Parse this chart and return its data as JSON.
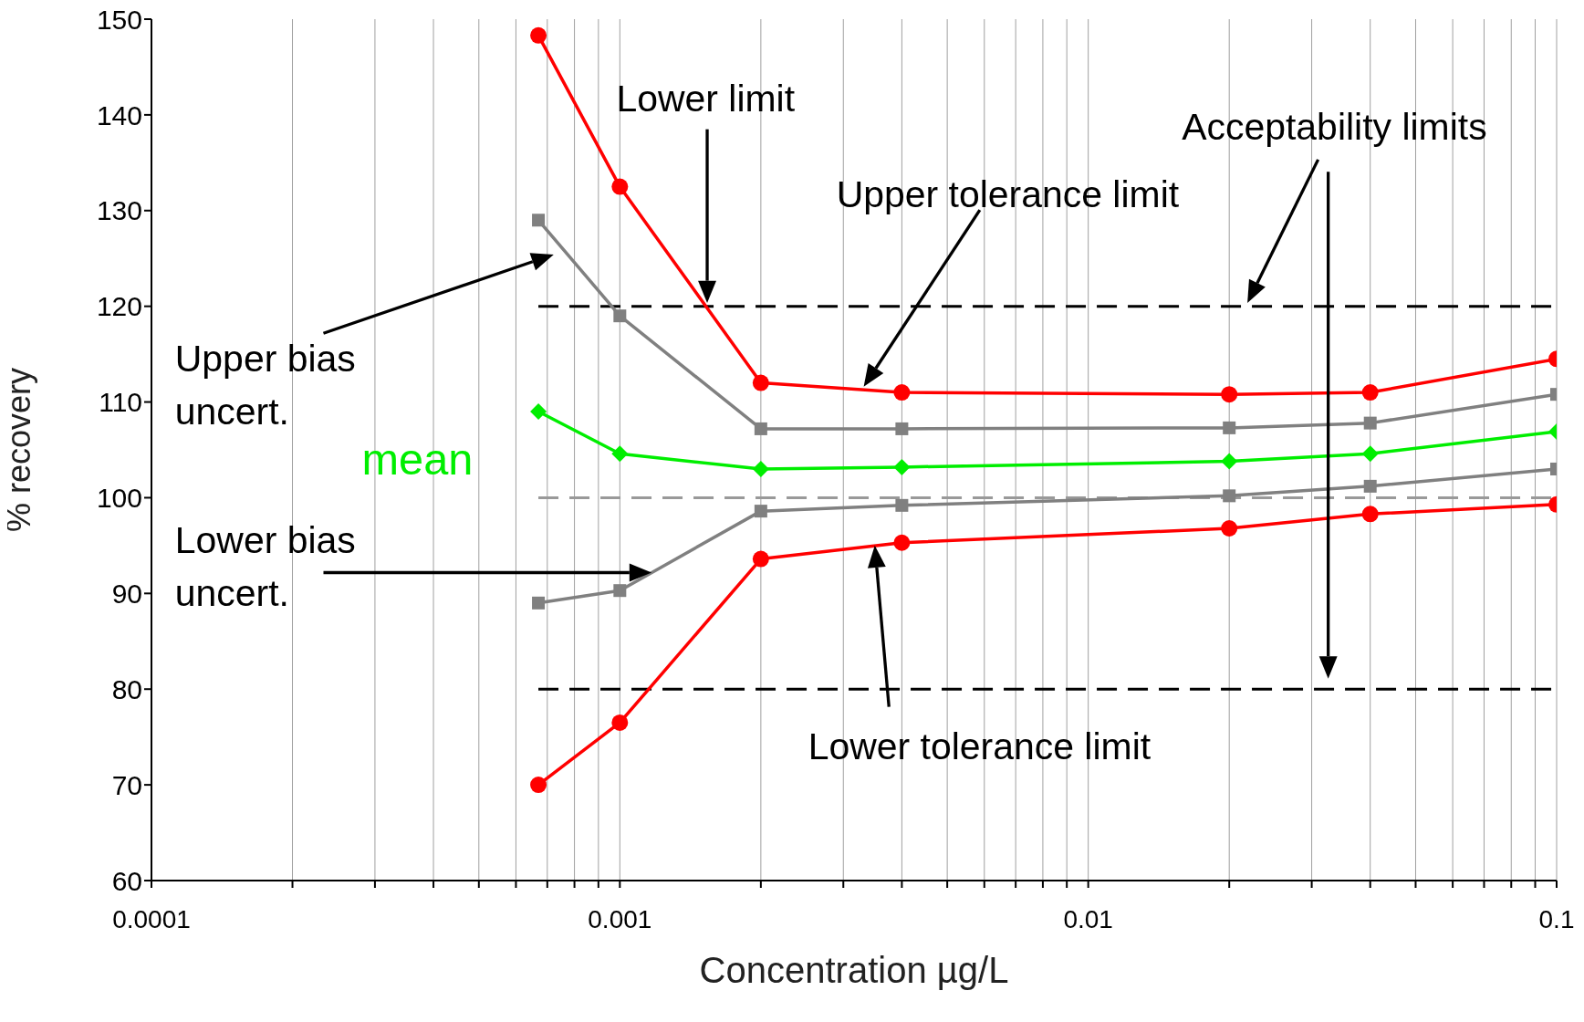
{
  "chart_data": {
    "type": "line",
    "xlabel": "Concentration µg/L",
    "ylabel": "% recovery",
    "log": "x",
    "xlim": [
      0.0001,
      0.1
    ],
    "xticks": [
      0.0001,
      {
        "value": 0.0002,
        "label": null
      },
      {
        "value": 0.0003,
        "label": null
      },
      {
        "value": 0.0004,
        "label": null
      },
      {
        "value": 0.0005,
        "label": null
      },
      {
        "value": 0.0006,
        "label": null
      },
      {
        "value": 0.0007,
        "label": null
      },
      {
        "value": 0.0008,
        "label": null
      },
      {
        "value": 0.0009,
        "label": null
      },
      0.001,
      {
        "value": 0.002,
        "label": null
      },
      {
        "value": 0.003,
        "label": null
      },
      {
        "value": 0.004,
        "label": null
      },
      {
        "value": 0.005,
        "label": null
      },
      {
        "value": 0.006,
        "label": null
      },
      {
        "value": 0.007,
        "label": null
      },
      {
        "value": 0.008,
        "label": null
      },
      {
        "value": 0.009,
        "label": null
      },
      0.01,
      {
        "value": 0.02,
        "label": null
      },
      {
        "value": 0.03,
        "label": null
      },
      {
        "value": 0.04,
        "label": null
      },
      {
        "value": 0.05,
        "label": null
      },
      {
        "value": 0.06,
        "label": null
      },
      {
        "value": 0.07,
        "label": null
      },
      {
        "value": 0.08,
        "label": null
      },
      {
        "value": 0.09,
        "label": null
      },
      0.1
    ],
    "ylim": [
      60,
      150
    ],
    "yticks": [
      60,
      70,
      80,
      90,
      100,
      110,
      120,
      130,
      140,
      150
    ],
    "grid": "x",
    "annotations": [
      "Lower limit",
      "Upper tolerance limit",
      "Acceptability limits",
      "Upper bias uncert.",
      "mean",
      "Lower bias uncert.",
      "Lower tolerance limit"
    ],
    "series": [
      {
        "color": "#000000",
        "marker": "none",
        "line_style": "dashed",
        "x": [
          0.00067,
          0.1
        ],
        "values": [
          120,
          120
        ]
      },
      {
        "color": "#000000",
        "marker": "none",
        "line_style": "dashed",
        "x": [
          0.00067,
          0.1
        ],
        "values": [
          80,
          80
        ]
      },
      {
        "color": "#999999",
        "marker": "none",
        "line_style": "dashed",
        "x": [
          0.00067,
          0.1
        ],
        "values": [
          100,
          100
        ]
      },
      {
        "color": "#ff0000",
        "marker": "circle",
        "line_style": "solid",
        "x": [
          0.00067,
          0.001,
          0.002,
          0.004,
          0.02,
          0.04,
          0.1
        ],
        "values": [
          148.3,
          132.5,
          112,
          111,
          110.8,
          111,
          114.5
        ]
      },
      {
        "color": "#808080",
        "marker": "square",
        "line_style": "solid",
        "x": [
          0.00067,
          0.001,
          0.002,
          0.004,
          0.02,
          0.04,
          0.1
        ],
        "values": [
          129,
          119,
          107.2,
          107.2,
          107.3,
          107.8,
          110.8
        ]
      },
      {
        "color": "#00ee00",
        "marker": "diamond",
        "line_style": "solid",
        "x": [
          0.00067,
          0.001,
          0.002,
          0.004,
          0.02,
          0.04,
          0.1
        ],
        "values": [
          109,
          104.6,
          103,
          103.2,
          103.8,
          104.6,
          106.9
        ]
      },
      {
        "color": "#808080",
        "marker": "square",
        "line_style": "solid",
        "x": [
          0.00067,
          0.001,
          0.002,
          0.004,
          0.02,
          0.04,
          0.1
        ],
        "values": [
          89,
          90.3,
          98.6,
          99.2,
          100.2,
          101.2,
          103
        ]
      },
      {
        "color": "#ff0000",
        "marker": "circle",
        "line_style": "solid",
        "x": [
          0.00067,
          0.001,
          0.002,
          0.004,
          0.02,
          0.04,
          0.1
        ],
        "values": [
          70,
          76.5,
          93.6,
          95.3,
          96.8,
          98.3,
          99.3
        ]
      }
    ]
  }
}
